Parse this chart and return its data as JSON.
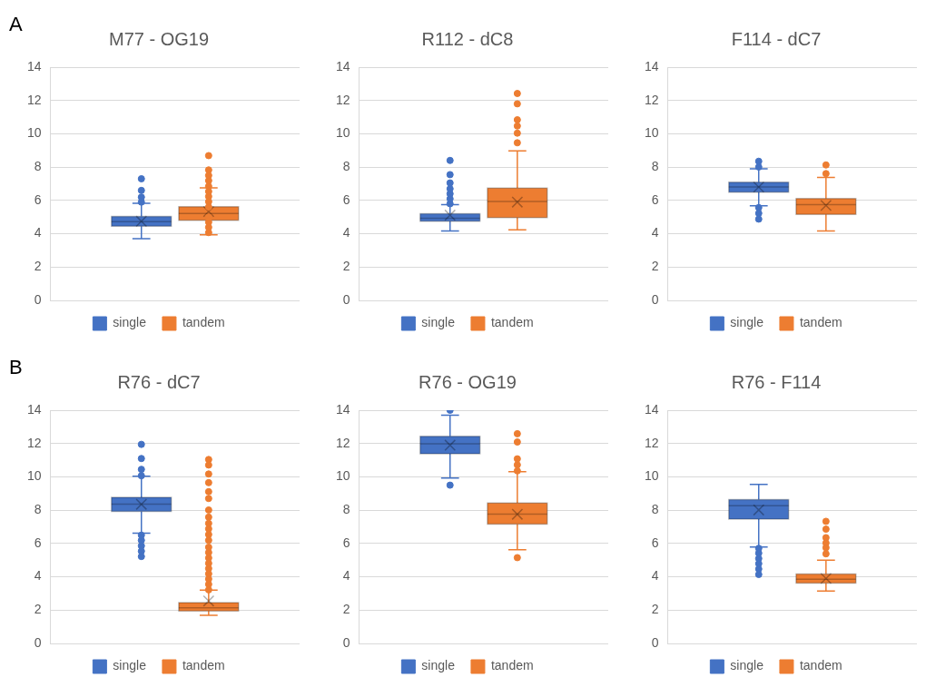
{
  "chart_data": [
    {
      "type": "box",
      "title": "M77 - OG19",
      "annotations": [
        "A"
      ],
      "categories": [
        null
      ],
      "ylim": [
        0,
        14
      ],
      "yticks": [
        0,
        2,
        4,
        6,
        8,
        10,
        12,
        14
      ],
      "grid": "y",
      "legend": "bottom",
      "series": [
        {
          "name": "single",
          "color": "#4472c4",
          "boxes": [
            {
              "low": 3.7,
              "q1": 4.45,
              "median": 4.72,
              "q3": 5.04,
              "high": 5.83,
              "mean": 4.75,
              "outliers": [
                5.9,
                6.2,
                6.6,
                7.3
              ]
            }
          ]
        },
        {
          "name": "tandem",
          "color": "#ed7d31",
          "boxes": [
            {
              "low": 3.93,
              "q1": 4.81,
              "median": 5.22,
              "q3": 5.63,
              "high": 6.76,
              "mean": 5.33,
              "outliers": [
                4.07,
                4.39,
                4.7,
                5.0,
                5.61,
                5.93,
                6.24,
                6.54,
                6.85,
                7.19,
                7.5,
                7.83,
                8.69
              ]
            }
          ]
        }
      ]
    },
    {
      "type": "box",
      "title": "R112 - dC8",
      "categories": [
        null
      ],
      "ylim": [
        0,
        14
      ],
      "yticks": [
        0,
        2,
        4,
        6,
        8,
        10,
        12,
        14
      ],
      "grid": "y",
      "legend": "bottom",
      "series": [
        {
          "name": "single",
          "color": "#4472c4",
          "boxes": [
            {
              "low": 4.17,
              "q1": 4.75,
              "median": 4.93,
              "q3": 5.2,
              "high": 5.75,
              "mean": 5.12,
              "outliers": [
                5.8,
                6.1,
                6.4,
                6.7,
                7.05,
                7.55,
                8.4
              ]
            }
          ]
        },
        {
          "name": "tandem",
          "color": "#ed7d31",
          "boxes": [
            {
              "low": 4.23,
              "q1": 4.97,
              "median": 5.94,
              "q3": 6.74,
              "high": 8.97,
              "mean": 5.9,
              "outliers": [
                9.46,
                10.04,
                10.47,
                10.84,
                11.8,
                12.42
              ]
            }
          ]
        }
      ]
    },
    {
      "type": "box",
      "title": "F114 - dC7",
      "categories": [
        null
      ],
      "ylim": [
        0,
        14
      ],
      "yticks": [
        0,
        2,
        4,
        6,
        8,
        10,
        12,
        14
      ],
      "grid": "y",
      "legend": "bottom",
      "series": [
        {
          "name": "single",
          "color": "#4472c4",
          "boxes": [
            {
              "low": 5.68,
              "q1": 6.49,
              "median": 6.81,
              "q3": 7.09,
              "high": 7.9,
              "mean": 6.8,
              "outliers": [
                4.88,
                5.23,
                5.57,
                8.01,
                8.35
              ]
            }
          ]
        },
        {
          "name": "tandem",
          "color": "#ed7d31",
          "boxes": [
            {
              "low": 4.17,
              "q1": 5.16,
              "median": 5.75,
              "q3": 6.12,
              "high": 7.38,
              "mean": 5.7,
              "outliers": [
                7.61,
                8.13
              ]
            }
          ]
        }
      ]
    },
    {
      "type": "box",
      "title": "R76 - dC7",
      "annotations": [
        "B"
      ],
      "categories": [
        null
      ],
      "ylim": [
        0,
        14
      ],
      "yticks": [
        0,
        2,
        4,
        6,
        8,
        10,
        12,
        14
      ],
      "grid": "y",
      "legend": "bottom",
      "series": [
        {
          "name": "single",
          "color": "#4472c4",
          "boxes": [
            {
              "low": 6.62,
              "q1": 7.92,
              "median": 8.36,
              "q3": 8.77,
              "high": 10.04,
              "mean": 8.35,
              "outliers": [
                5.22,
                5.54,
                5.86,
                6.19,
                6.5,
                10.07,
                10.45,
                11.1,
                11.95
              ]
            }
          ]
        },
        {
          "name": "tandem",
          "color": "#ed7d31",
          "boxes": [
            {
              "low": 1.69,
              "q1": 1.95,
              "median": 2.14,
              "q3": 2.45,
              "high": 3.2,
              "mean": 2.55,
              "outliers": [
                3.22,
                3.55,
                3.87,
                4.18,
                4.5,
                4.81,
                5.13,
                5.46,
                5.78,
                6.19,
                6.54,
                6.88,
                7.21,
                7.58,
                8.01,
                8.7,
                9.11,
                9.65,
                10.17,
                10.71,
                11.04
              ]
            }
          ]
        }
      ]
    },
    {
      "type": "box",
      "title": "R76 - OG19",
      "categories": [
        null
      ],
      "ylim": [
        0,
        14
      ],
      "yticks": [
        0,
        2,
        4,
        6,
        8,
        10,
        12,
        14
      ],
      "grid": "y",
      "legend": "bottom",
      "series": [
        {
          "name": "single",
          "color": "#4472c4",
          "boxes": [
            {
              "low": 9.93,
              "q1": 11.38,
              "median": 11.99,
              "q3": 12.43,
              "high": 13.7,
              "mean": 11.9,
              "outliers": [
                9.5,
                14.0
              ]
            }
          ]
        },
        {
          "name": "tandem",
          "color": "#ed7d31",
          "boxes": [
            {
              "low": 5.62,
              "q1": 7.16,
              "median": 7.76,
              "q3": 8.43,
              "high": 10.31,
              "mean": 7.75,
              "outliers": [
                5.15,
                10.36,
                10.72,
                11.08,
                12.09,
                12.59
              ]
            }
          ]
        }
      ]
    },
    {
      "type": "box",
      "title": "R76 - F114",
      "categories": [
        null
      ],
      "ylim": [
        0,
        14
      ],
      "yticks": [
        0,
        2,
        4,
        6,
        8,
        10,
        12,
        14
      ],
      "grid": "y",
      "legend": "bottom",
      "series": [
        {
          "name": "single",
          "color": "#4472c4",
          "boxes": [
            {
              "low": 5.79,
              "q1": 7.46,
              "median": 8.27,
              "q3": 8.63,
              "high": 9.55,
              "mean": 8.01,
              "outliers": [
                4.14,
                4.47,
                4.79,
                5.1,
                5.42,
                5.71
              ]
            }
          ]
        },
        {
          "name": "tandem",
          "color": "#ed7d31",
          "boxes": [
            {
              "low": 3.15,
              "q1": 3.62,
              "median": 3.86,
              "q3": 4.17,
              "high": 5.0,
              "mean": 3.9,
              "outliers": [
                5.38,
                5.75,
                6.03,
                6.35,
                6.86,
                7.33
              ]
            }
          ]
        }
      ]
    }
  ]
}
